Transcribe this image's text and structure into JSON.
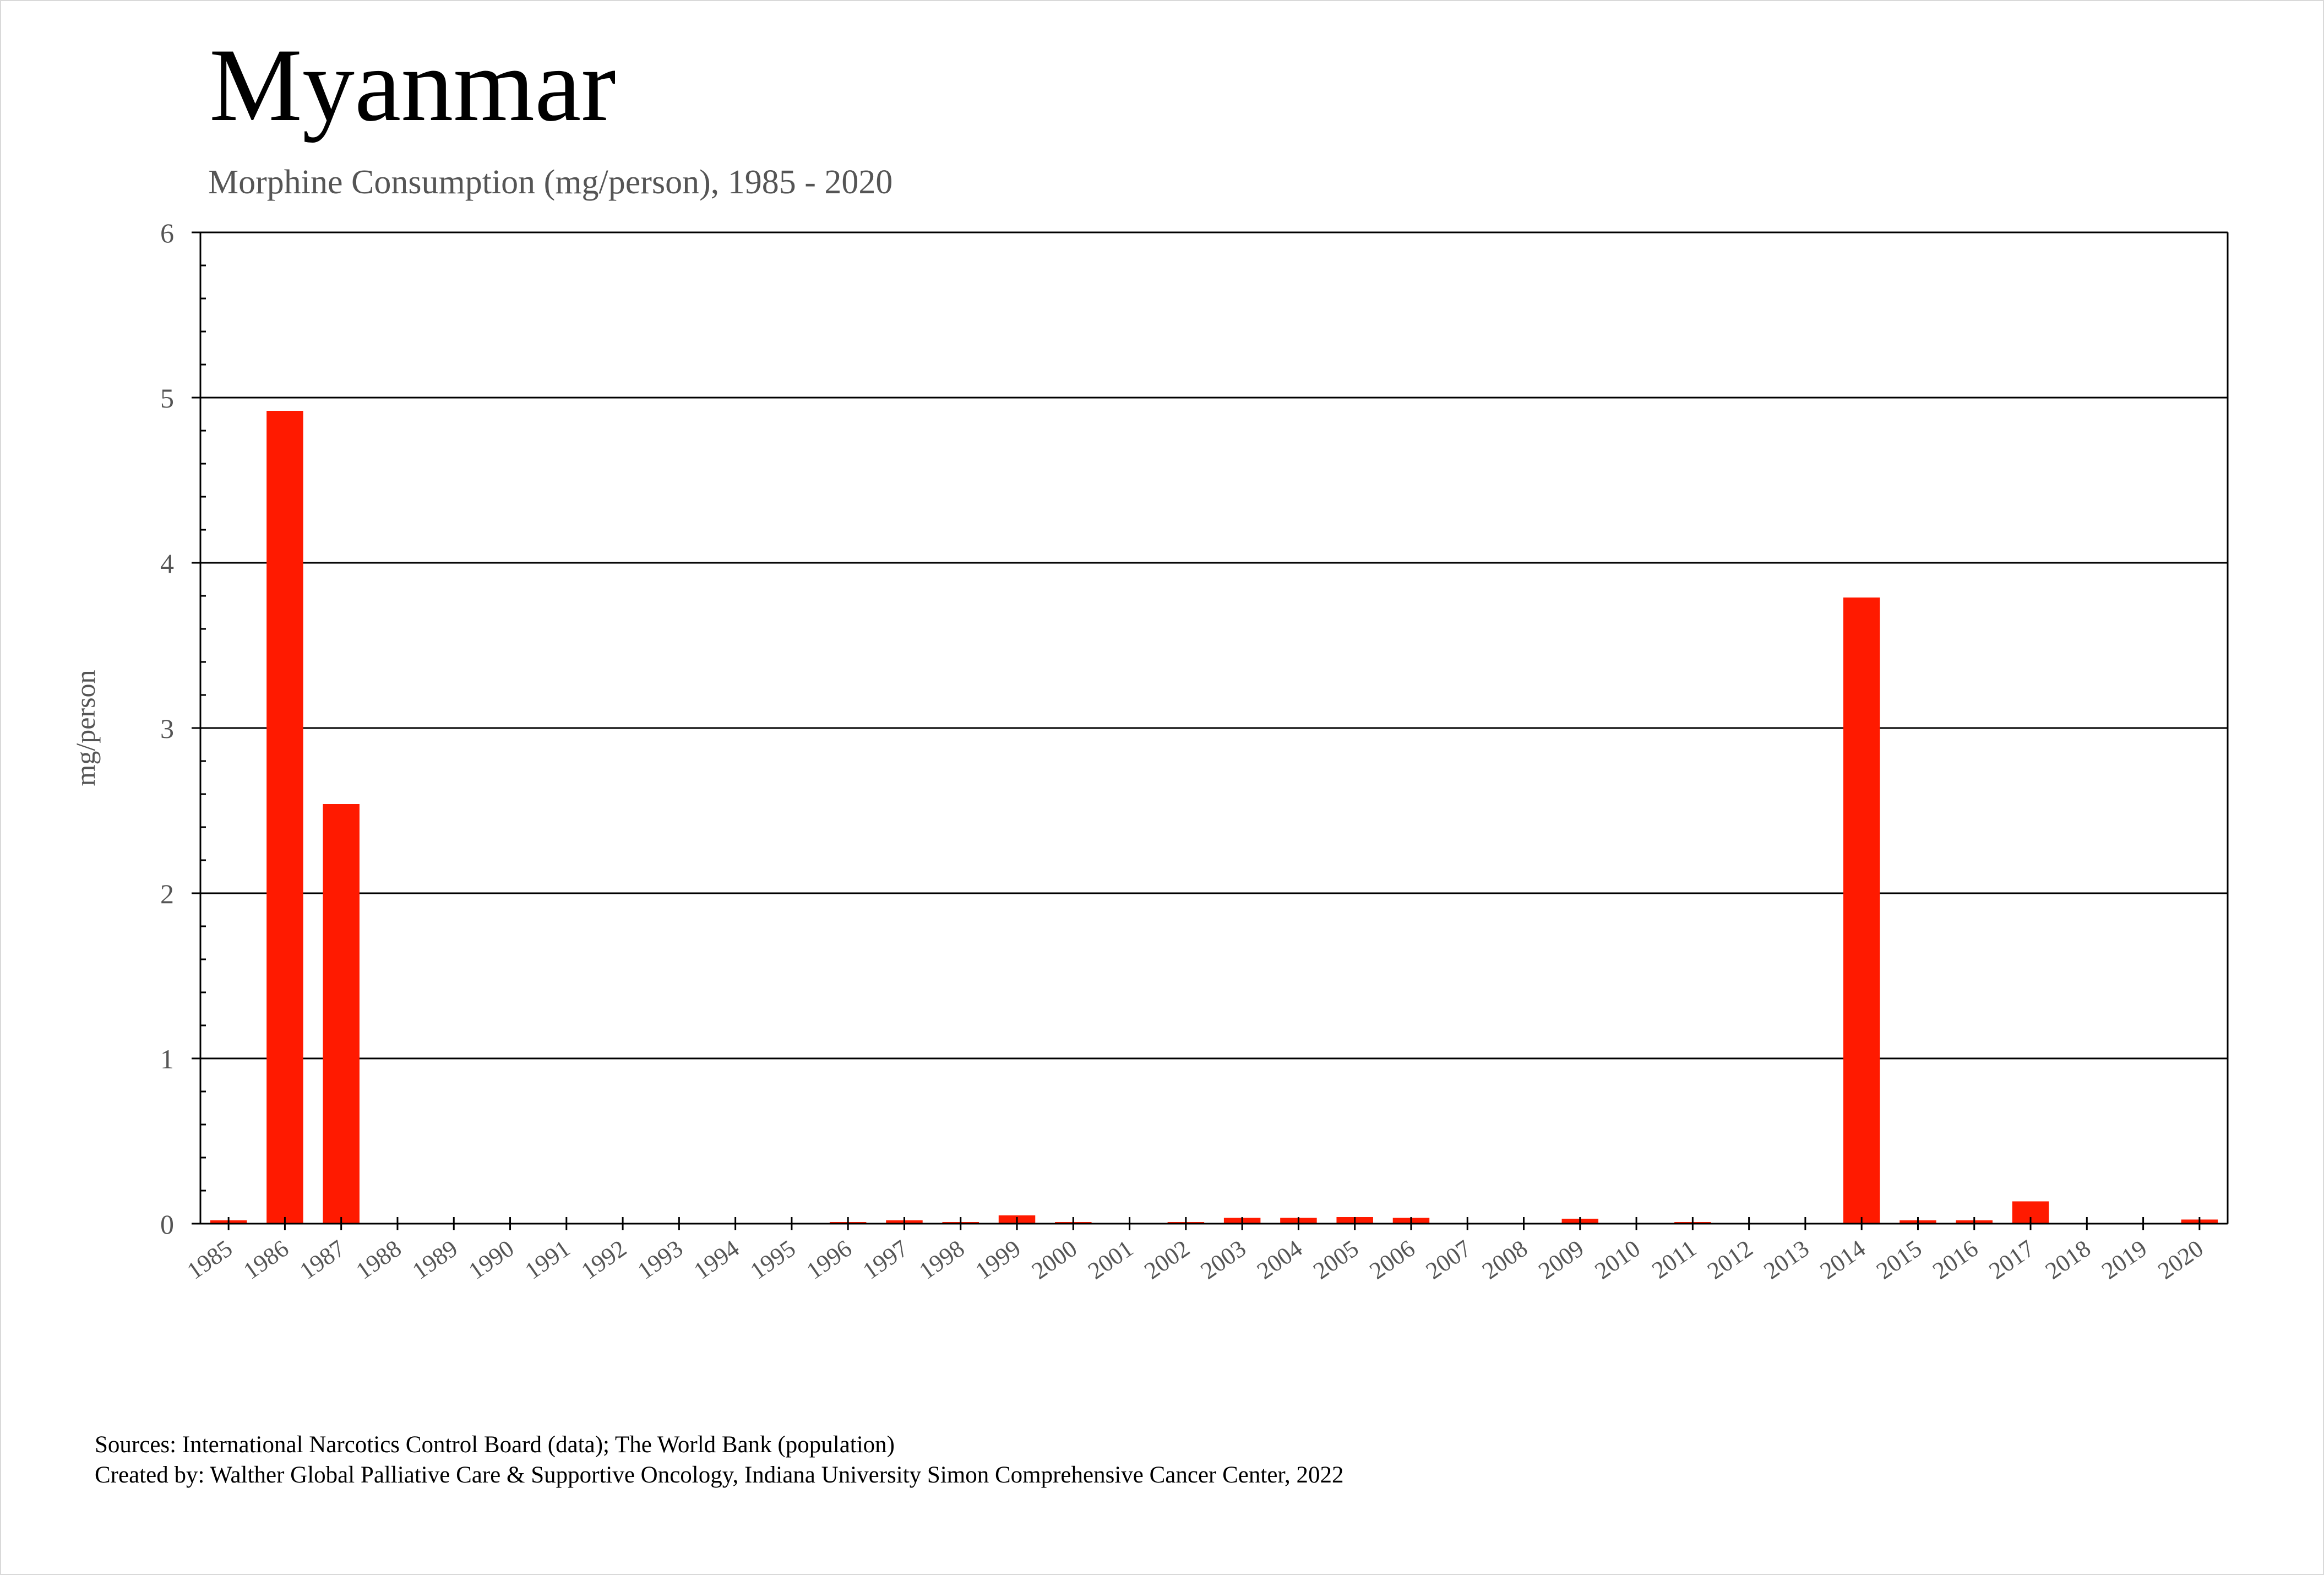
{
  "header": {
    "title": "Myanmar",
    "subtitle": "Morphine Consumption (mg/person), 1985 - 2020"
  },
  "footer": {
    "sources": "Sources: International Narcotics Control Board (data); The World Bank (population)",
    "created_by": "Created by: Walther  Global Palliative Care & Supportive Oncology, Indiana University Simon Comprehensive Cancer Center, 2022"
  },
  "colors": {
    "bar": "#ff1a00",
    "gridline": "#000000",
    "text": "#555555"
  },
  "chart_data": {
    "type": "bar",
    "title": "Myanmar",
    "subtitle": "Morphine Consumption (mg/person), 1985 - 2020",
    "xlabel": "",
    "ylabel": "mg/person",
    "ylim": [
      0,
      6
    ],
    "yticks": [
      0,
      1,
      2,
      3,
      4,
      5,
      6
    ],
    "grid": true,
    "legend": "none",
    "categories": [
      "1985",
      "1986",
      "1987",
      "1988",
      "1989",
      "1990",
      "1991",
      "1992",
      "1993",
      "1994",
      "1995",
      "1996",
      "1997",
      "1998",
      "1999",
      "2000",
      "2001",
      "2002",
      "2003",
      "2004",
      "2005",
      "2006",
      "2007",
      "2008",
      "2009",
      "2010",
      "2011",
      "2012",
      "2013",
      "2014",
      "2015",
      "2016",
      "2017",
      "2018",
      "2019",
      "2020"
    ],
    "values": [
      0.02,
      4.92,
      2.54,
      0,
      0,
      0,
      0,
      0,
      0,
      0,
      0,
      0.01,
      0.02,
      0.01,
      0.05,
      0.01,
      0,
      0.01,
      0.035,
      0.035,
      0.04,
      0.035,
      0,
      0,
      0.03,
      0,
      0.01,
      0,
      0.005,
      3.79,
      0.02,
      0.02,
      0.135,
      0,
      0.005,
      0.025
    ]
  }
}
